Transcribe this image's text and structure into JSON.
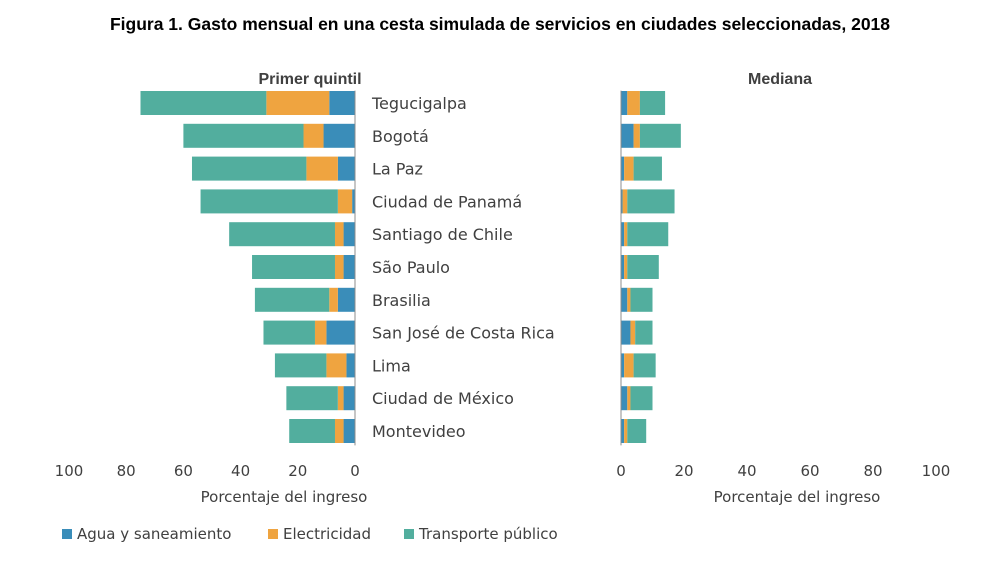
{
  "title": "Figura 1. Gasto mensual en una cesta simulada de servicios en ciudades seleccionadas, 2018",
  "colors": {
    "agua": "#3A8DB9",
    "electricidad": "#EFA440",
    "transporte": "#52AE9E",
    "axis": "#8C8C8C"
  },
  "chart_data": [
    {
      "type": "bar",
      "orientation": "horizontal",
      "stacked": true,
      "direction": "reversed",
      "title": "Primer quintil",
      "xlabel": "Porcentaje del ingreso",
      "xlim": [
        0,
        100
      ],
      "ticks": [
        "100",
        "80",
        "60",
        "40",
        "20",
        "0"
      ],
      "categories": [
        "Tegucigalpa",
        "Bogotá",
        "La Paz",
        "Ciudad de Panamá",
        "Santiago de Chile",
        "São Paulo",
        "Brasilia",
        "San José de Costa Rica",
        "Lima",
        "Ciudad de México",
        "Montevideo"
      ],
      "series": [
        {
          "name": "Agua y saneamiento",
          "values": [
            9,
            11,
            6,
            1,
            4,
            4,
            6,
            10,
            3,
            4,
            4
          ]
        },
        {
          "name": "Electricidad",
          "values": [
            22,
            7,
            11,
            5,
            3,
            3,
            3,
            4,
            7,
            2,
            3
          ]
        },
        {
          "name": "Transporte público",
          "values": [
            44,
            42,
            40,
            48,
            37,
            29,
            26,
            18,
            18,
            18,
            16
          ]
        }
      ]
    },
    {
      "type": "bar",
      "orientation": "horizontal",
      "stacked": true,
      "title": "Mediana",
      "xlabel": "Porcentaje del ingreso",
      "xlim": [
        0,
        100
      ],
      "ticks": [
        "0",
        "20",
        "40",
        "60",
        "80",
        "100"
      ],
      "categories": [
        "Tegucigalpa",
        "Bogotá",
        "La Paz",
        "Ciudad de Panamá",
        "Santiago de Chile",
        "São Paulo",
        "Brasilia",
        "San José de Costa Rica",
        "Lima",
        "Ciudad de México",
        "Montevideo"
      ],
      "series": [
        {
          "name": "Agua y saneamiento",
          "values": [
            2,
            4,
            1,
            0.5,
            1,
            1,
            2,
            3,
            1,
            2,
            1
          ]
        },
        {
          "name": "Electricidad",
          "values": [
            4,
            2,
            3,
            1.5,
            1,
            1,
            1,
            1.5,
            3,
            1,
            1
          ]
        },
        {
          "name": "Transporte público",
          "values": [
            8,
            13,
            9,
            15,
            13,
            10,
            7,
            5.5,
            7,
            7,
            6
          ]
        }
      ]
    }
  ],
  "legend": [
    {
      "label": "Agua y saneamiento",
      "color": "#3A8DB9"
    },
    {
      "label": "Electricidad",
      "color": "#EFA440"
    },
    {
      "label": "Transporte público",
      "color": "#52AE9E"
    }
  ]
}
